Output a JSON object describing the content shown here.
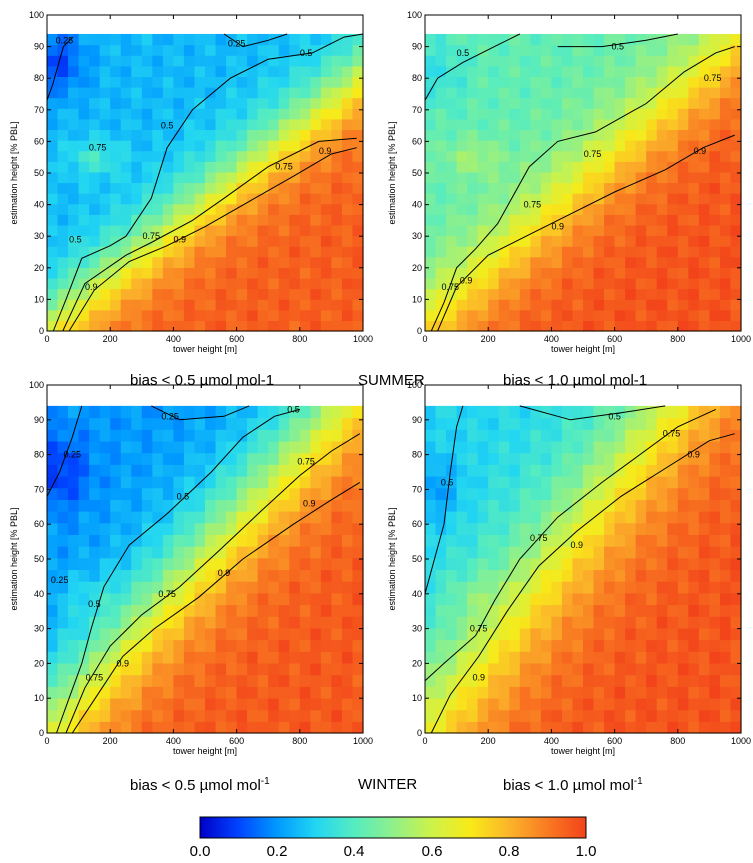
{
  "colors": {
    "colormap": [
      "#0000c8",
      "#0044ff",
      "#0099ff",
      "#22d6f2",
      "#55ecc0",
      "#8ff08a",
      "#cdf249",
      "#f8ea18",
      "#fbb52a",
      "#f97a22",
      "#f2431a"
    ]
  },
  "row_labels": {
    "summer": {
      "left": "bias < 0.5 µmol mol-1",
      "center": "SUMMER",
      "right": "bias < 1.0 µmol mol-1",
      "superscript_units": false
    },
    "winter": {
      "left_base": "bias < 0.5 µmol mol",
      "center": "WINTER",
      "right_base": "bias < 1.0 µmol mol",
      "unit_exponent": "-1",
      "superscript_units": true
    }
  },
  "colorbar": {
    "ticks": [
      "0.0",
      "0.2",
      "0.4",
      "0.6",
      "0.8",
      "1.0"
    ],
    "range": [
      0,
      1
    ]
  },
  "chart_data": [
    {
      "type": "heatmap",
      "panel": "summer-left",
      "xlabel": "tower height [m]",
      "ylabel": "estimation height [% PBL]",
      "xlim": [
        0,
        1000
      ],
      "ylim": [
        0,
        100
      ],
      "xticks": [
        0,
        200,
        400,
        600,
        800,
        1000
      ],
      "yticks": [
        0,
        10,
        20,
        30,
        40,
        50,
        60,
        70,
        80,
        90,
        100
      ],
      "data_extent_y": [
        0,
        94
      ],
      "contours": [
        {
          "level": "0.25",
          "points": [
            [
              0,
              73
            ],
            [
              18,
              78
            ],
            [
              52,
              90
            ],
            [
              82,
              93
            ]
          ]
        },
        {
          "level": "0.25",
          "points": [
            [
              560,
              94
            ],
            [
              620,
              90
            ],
            [
              700,
              92
            ],
            [
              760,
              94
            ]
          ]
        },
        {
          "level": "0.5",
          "points": [
            [
              20,
              0
            ],
            [
              60,
              10
            ],
            [
              110,
              23
            ],
            [
              200,
              27
            ],
            [
              250,
              30
            ],
            [
              330,
              42
            ],
            [
              380,
              58
            ],
            [
              460,
              70
            ],
            [
              580,
              80
            ],
            [
              700,
              86
            ],
            [
              840,
              88
            ],
            [
              940,
              93
            ],
            [
              1000,
              94
            ]
          ]
        },
        {
          "level": "0.75",
          "points": [
            [
              50,
              0
            ],
            [
              120,
              15
            ],
            [
              250,
              24
            ],
            [
              330,
              28
            ],
            [
              460,
              35
            ],
            [
              560,
              42
            ],
            [
              700,
              52
            ],
            [
              860,
              60
            ],
            [
              980,
              61
            ]
          ]
        },
        {
          "level": "0.9",
          "points": [
            [
              70,
              0
            ],
            [
              150,
              13
            ],
            [
              260,
              22
            ],
            [
              380,
              27
            ],
            [
              500,
              33
            ],
            [
              640,
              41
            ],
            [
              780,
              49
            ],
            [
              900,
              56
            ],
            [
              980,
              58
            ]
          ]
        }
      ],
      "contour_labels": [
        {
          "text": "0.25",
          "x": 55,
          "y": 92
        },
        {
          "text": "0.25",
          "x": 600,
          "y": 91
        },
        {
          "text": "0.5",
          "x": 90,
          "y": 29
        },
        {
          "text": "0.5",
          "x": 380,
          "y": 65
        },
        {
          "text": "0.5",
          "x": 820,
          "y": 88
        },
        {
          "text": "0.75",
          "x": 160,
          "y": 58
        },
        {
          "text": "0.75",
          "x": 330,
          "y": 30
        },
        {
          "text": "0.75",
          "x": 750,
          "y": 52
        },
        {
          "text": "0.9",
          "x": 140,
          "y": 14
        },
        {
          "text": "0.9",
          "x": 420,
          "y": 29
        },
        {
          "text": "0.9",
          "x": 880,
          "y": 57
        }
      ],
      "field": {
        "pbl_ratio": 1.25,
        "lo": 0.25,
        "hi": 0.95,
        "contrast": 10,
        "warm": [
          150,
          55,
          0.12
        ],
        "cold": [
          30,
          85,
          -0.15
        ]
      }
    },
    {
      "type": "heatmap",
      "panel": "summer-right",
      "xlabel": "tower height [m]",
      "ylabel": "estimation height [% PBL]",
      "xlim": [
        0,
        1000
      ],
      "ylim": [
        0,
        100
      ],
      "xticks": [
        0,
        200,
        400,
        600,
        800,
        1000
      ],
      "yticks": [
        0,
        10,
        20,
        30,
        40,
        50,
        60,
        70,
        80,
        90,
        100
      ],
      "data_extent_y": [
        0,
        94
      ],
      "contours": [
        {
          "level": "0.5",
          "points": [
            [
              0,
              73
            ],
            [
              40,
              80
            ],
            [
              120,
              85
            ],
            [
              220,
              90
            ],
            [
              300,
              94
            ]
          ]
        },
        {
          "level": "0.5",
          "points": [
            [
              420,
              90
            ],
            [
              560,
              90
            ],
            [
              700,
              92
            ],
            [
              800,
              94
            ]
          ]
        },
        {
          "level": "0.75",
          "points": [
            [
              20,
              0
            ],
            [
              60,
              9
            ],
            [
              100,
              20
            ],
            [
              160,
              26
            ],
            [
              230,
              34
            ],
            [
              330,
              52
            ],
            [
              420,
              60
            ],
            [
              540,
              63
            ],
            [
              700,
              72
            ],
            [
              820,
              82
            ],
            [
              920,
              88
            ],
            [
              980,
              90
            ]
          ]
        },
        {
          "level": "0.9",
          "points": [
            [
              40,
              0
            ],
            [
              100,
              14
            ],
            [
              200,
              24
            ],
            [
              320,
              30
            ],
            [
              460,
              37
            ],
            [
              600,
              44
            ],
            [
              760,
              51
            ],
            [
              880,
              58
            ],
            [
              980,
              62
            ]
          ]
        }
      ],
      "contour_labels": [
        {
          "text": "0.5",
          "x": 120,
          "y": 88
        },
        {
          "text": "0.5",
          "x": 610,
          "y": 90
        },
        {
          "text": "0.75",
          "x": 80,
          "y": 14
        },
        {
          "text": "0.75",
          "x": 340,
          "y": 40
        },
        {
          "text": "0.75",
          "x": 530,
          "y": 56
        },
        {
          "text": "0.75",
          "x": 910,
          "y": 80
        },
        {
          "text": "0.9",
          "x": 130,
          "y": 16
        },
        {
          "text": "0.9",
          "x": 420,
          "y": 33
        },
        {
          "text": "0.9",
          "x": 870,
          "y": 57
        }
      ],
      "field": {
        "pbl_ratio": 1.1,
        "lo": 0.42,
        "hi": 0.97,
        "contrast": 9,
        "warm": [
          150,
          55,
          0.1
        ],
        "cold": [
          40,
          82,
          -0.08
        ]
      }
    },
    {
      "type": "heatmap",
      "panel": "winter-left",
      "xlabel": "tower height [m]",
      "ylabel": "estimation height [% PBL]",
      "xlim": [
        0,
        1000
      ],
      "ylim": [
        0,
        100
      ],
      "xticks": [
        0,
        200,
        400,
        600,
        800,
        1000
      ],
      "yticks": [
        0,
        10,
        20,
        30,
        40,
        50,
        60,
        70,
        80,
        90,
        100
      ],
      "data_extent_y": [
        0,
        94
      ],
      "contours": [
        {
          "level": "0.25",
          "points": [
            [
              0,
              68
            ],
            [
              40,
              75
            ],
            [
              80,
              85
            ],
            [
              110,
              94
            ]
          ]
        },
        {
          "level": "0.25",
          "points": [
            [
              330,
              94
            ],
            [
              420,
              90
            ],
            [
              560,
              91
            ],
            [
              640,
              94
            ]
          ]
        },
        {
          "level": "0.5",
          "points": [
            [
              30,
              0
            ],
            [
              70,
              10
            ],
            [
              110,
              20
            ],
            [
              140,
              30
            ],
            [
              180,
              42
            ],
            [
              260,
              54
            ],
            [
              380,
              63
            ],
            [
              520,
              75
            ],
            [
              620,
              85
            ],
            [
              720,
              91
            ],
            [
              800,
              93
            ]
          ]
        },
        {
          "level": "0.75",
          "points": [
            [
              60,
              0
            ],
            [
              120,
              13
            ],
            [
              200,
              25
            ],
            [
              300,
              34
            ],
            [
              420,
              42
            ],
            [
              540,
              52
            ],
            [
              680,
              64
            ],
            [
              800,
              74
            ],
            [
              900,
              81
            ],
            [
              990,
              86
            ]
          ]
        },
        {
          "level": "0.9",
          "points": [
            [
              80,
              0
            ],
            [
              160,
              11
            ],
            [
              240,
              22
            ],
            [
              340,
              30
            ],
            [
              480,
              39
            ],
            [
              620,
              50
            ],
            [
              780,
              60
            ],
            [
              900,
              67
            ],
            [
              990,
              72
            ]
          ]
        }
      ],
      "contour_labels": [
        {
          "text": "0.25",
          "x": 80,
          "y": 80
        },
        {
          "text": "0.25",
          "x": 40,
          "y": 44
        },
        {
          "text": "0.25",
          "x": 390,
          "y": 91
        },
        {
          "text": "0.5",
          "x": 150,
          "y": 37
        },
        {
          "text": "0.5",
          "x": 430,
          "y": 68
        },
        {
          "text": "0.5",
          "x": 780,
          "y": 93
        },
        {
          "text": "0.75",
          "x": 150,
          "y": 16
        },
        {
          "text": "0.75",
          "x": 380,
          "y": 40
        },
        {
          "text": "0.75",
          "x": 820,
          "y": 78
        },
        {
          "text": "0.9",
          "x": 240,
          "y": 20
        },
        {
          "text": "0.9",
          "x": 560,
          "y": 46
        },
        {
          "text": "0.9",
          "x": 830,
          "y": 66
        }
      ],
      "field": {
        "pbl_ratio": 1.0,
        "lo": 0.2,
        "hi": 0.96,
        "contrast": 9,
        "warm": [
          120,
          40,
          0.05
        ],
        "cold": [
          40,
          75,
          -0.12
        ]
      }
    },
    {
      "type": "heatmap",
      "panel": "winter-right",
      "xlabel": "tower height [m]",
      "ylabel": "estimation height [% PBL]",
      "xlim": [
        0,
        1000
      ],
      "ylim": [
        0,
        100
      ],
      "xticks": [
        0,
        200,
        400,
        600,
        800,
        1000
      ],
      "yticks": [
        0,
        10,
        20,
        30,
        40,
        50,
        60,
        70,
        80,
        90,
        100
      ],
      "data_extent_y": [
        0,
        94
      ],
      "contours": [
        {
          "level": "0.5",
          "points": [
            [
              0,
              40
            ],
            [
              30,
              50
            ],
            [
              60,
              60
            ],
            [
              80,
              75
            ],
            [
              100,
              88
            ],
            [
              120,
              94
            ]
          ]
        },
        {
          "level": "0.5",
          "points": [
            [
              300,
              94
            ],
            [
              460,
              90
            ],
            [
              620,
              92
            ],
            [
              760,
              94
            ]
          ]
        },
        {
          "level": "0.75",
          "points": [
            [
              0,
              15
            ],
            [
              60,
              20
            ],
            [
              160,
              28
            ],
            [
              220,
              38
            ],
            [
              300,
              50
            ],
            [
              420,
              62
            ],
            [
              560,
              72
            ],
            [
              680,
              80
            ],
            [
              800,
              88
            ],
            [
              920,
              93
            ]
          ]
        },
        {
          "level": "0.9",
          "points": [
            [
              20,
              0
            ],
            [
              80,
              11
            ],
            [
              170,
              22
            ],
            [
              260,
              35
            ],
            [
              360,
              48
            ],
            [
              480,
              58
            ],
            [
              620,
              68
            ],
            [
              760,
              76
            ],
            [
              900,
              84
            ],
            [
              980,
              86
            ]
          ]
        }
      ],
      "contour_labels": [
        {
          "text": "0.5",
          "x": 70,
          "y": 72
        },
        {
          "text": "0.5",
          "x": 600,
          "y": 91
        },
        {
          "text": "0.75",
          "x": 170,
          "y": 30
        },
        {
          "text": "0.75",
          "x": 360,
          "y": 56
        },
        {
          "text": "0.75",
          "x": 780,
          "y": 86
        },
        {
          "text": "0.9",
          "x": 170,
          "y": 16
        },
        {
          "text": "0.9",
          "x": 480,
          "y": 54
        },
        {
          "text": "0.9",
          "x": 850,
          "y": 80
        }
      ],
      "field": {
        "pbl_ratio": 0.85,
        "lo": 0.3,
        "hi": 0.97,
        "contrast": 8,
        "warm": [
          150,
          40,
          0.05
        ],
        "cold": [
          30,
          70,
          -0.1
        ]
      }
    }
  ]
}
